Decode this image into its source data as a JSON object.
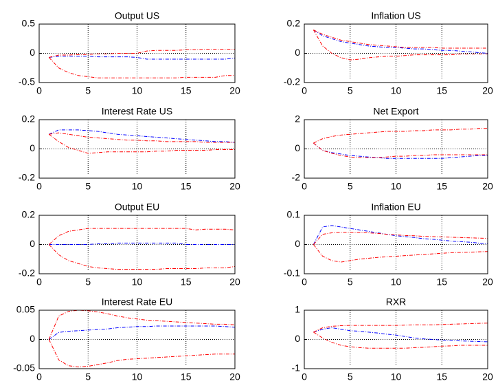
{
  "chart_data": [
    {
      "type": "line",
      "title": "Output US",
      "x": [
        1,
        2,
        3,
        4,
        5,
        6,
        7,
        8,
        9,
        10,
        11,
        12,
        13,
        14,
        15,
        16,
        17,
        18,
        19,
        20
      ],
      "xlim": [
        0,
        20
      ],
      "xticks": [
        0,
        5,
        10,
        15,
        20
      ],
      "ylim": [
        -0.5,
        0.5
      ],
      "yticks": [
        -0.5,
        0,
        0.5
      ],
      "grid": "x",
      "series": [
        {
          "color": "#0000ff",
          "values": [
            -0.07,
            -0.05,
            -0.05,
            -0.05,
            -0.05,
            -0.06,
            -0.06,
            -0.06,
            -0.06,
            -0.07,
            -0.1,
            -0.1,
            -0.1,
            -0.1,
            -0.1,
            -0.1,
            -0.1,
            -0.1,
            -0.1,
            -0.08
          ]
        },
        {
          "color": "#ff0000",
          "values": [
            -0.07,
            -0.03,
            -0.03,
            -0.02,
            -0.02,
            -0.01,
            -0.01,
            0,
            0,
            0,
            0.04,
            0.05,
            0.05,
            0.05,
            0.06,
            0.06,
            0.07,
            0.07,
            0.07,
            0.07
          ]
        },
        {
          "color": "#ff0000",
          "values": [
            -0.07,
            -0.25,
            -0.33,
            -0.38,
            -0.4,
            -0.42,
            -0.42,
            -0.42,
            -0.42,
            -0.42,
            -0.42,
            -0.42,
            -0.42,
            -0.42,
            -0.41,
            -0.41,
            -0.41,
            -0.41,
            -0.38,
            -0.38
          ]
        }
      ]
    },
    {
      "type": "line",
      "title": "Inflation US",
      "x": [
        1,
        2,
        3,
        4,
        5,
        6,
        7,
        8,
        9,
        10,
        11,
        12,
        13,
        14,
        15,
        16,
        17,
        18,
        19,
        20
      ],
      "xlim": [
        0,
        20
      ],
      "xticks": [
        0,
        5,
        10,
        15,
        20
      ],
      "ylim": [
        -0.2,
        0.2
      ],
      "yticks": [
        -0.2,
        0,
        0.2
      ],
      "grid": "x",
      "series": [
        {
          "color": "#0000ff",
          "values": [
            0.16,
            0.12,
            0.1,
            0.08,
            0.07,
            0.06,
            0.05,
            0.045,
            0.04,
            0.04,
            0.035,
            0.03,
            0.03,
            0.025,
            0.02,
            0.02,
            0.015,
            0.01,
            0.005,
            0
          ]
        },
        {
          "color": "#ff0000",
          "values": [
            0.16,
            0.13,
            0.11,
            0.09,
            0.08,
            0.07,
            0.06,
            0.055,
            0.05,
            0.045,
            0.04,
            0.04,
            0.04,
            0.04,
            0.035,
            0.035,
            0.035,
            0.035,
            0.035,
            0.035
          ]
        },
        {
          "color": "#ff0000",
          "values": [
            0.16,
            0.05,
            0,
            -0.03,
            -0.045,
            -0.04,
            -0.03,
            -0.025,
            -0.02,
            -0.02,
            -0.015,
            -0.01,
            -0.01,
            -0.01,
            -0.01,
            -0.01,
            -0.005,
            -0.005,
            -0.005,
            -0.005
          ]
        }
      ]
    },
    {
      "type": "line",
      "title": "Interest Rate US",
      "x": [
        1,
        2,
        3,
        4,
        5,
        6,
        7,
        8,
        9,
        10,
        11,
        12,
        13,
        14,
        15,
        16,
        17,
        18,
        19,
        20
      ],
      "xlim": [
        0,
        20
      ],
      "xticks": [
        0,
        5,
        10,
        15,
        20
      ],
      "ylim": [
        -0.2,
        0.2
      ],
      "yticks": [
        -0.2,
        0,
        0.2
      ],
      "grid": "x",
      "series": [
        {
          "color": "#0000ff",
          "values": [
            0.1,
            0.13,
            0.13,
            0.13,
            0.125,
            0.12,
            0.11,
            0.1,
            0.095,
            0.09,
            0.085,
            0.08,
            0.075,
            0.07,
            0.065,
            0.06,
            0.055,
            0.05,
            0.05,
            0.045
          ]
        },
        {
          "color": "#ff0000",
          "values": [
            0.1,
            0.11,
            0.1,
            0.09,
            0.08,
            0.075,
            0.07,
            0.065,
            0.06,
            0.06,
            0.055,
            0.055,
            0.05,
            0.05,
            0.05,
            0.05,
            0.045,
            0.045,
            0.045,
            0.045
          ]
        },
        {
          "color": "#ff0000",
          "values": [
            0.1,
            0.05,
            0.01,
            -0.01,
            -0.03,
            -0.025,
            -0.02,
            -0.02,
            -0.02,
            -0.02,
            -0.02,
            -0.015,
            -0.015,
            -0.01,
            -0.01,
            -0.01,
            -0.01,
            -0.005,
            -0.005,
            -0.005
          ]
        }
      ]
    },
    {
      "type": "line",
      "title": "Net Export",
      "x": [
        1,
        2,
        3,
        4,
        5,
        6,
        7,
        8,
        9,
        10,
        11,
        12,
        13,
        14,
        15,
        16,
        17,
        18,
        19,
        20
      ],
      "xlim": [
        0,
        20
      ],
      "xticks": [
        0,
        5,
        10,
        15,
        20
      ],
      "ylim": [
        -2,
        2
      ],
      "yticks": [
        -2,
        0,
        2
      ],
      "grid": "x",
      "series": [
        {
          "color": "#0000ff",
          "values": [
            0.4,
            -0.1,
            -0.25,
            -0.35,
            -0.45,
            -0.5,
            -0.55,
            -0.6,
            -0.65,
            -0.65,
            -0.65,
            -0.65,
            -0.65,
            -0.65,
            -0.65,
            -0.6,
            -0.55,
            -0.5,
            -0.45,
            -0.45
          ]
        },
        {
          "color": "#ff0000",
          "values": [
            0.4,
            0.7,
            0.85,
            0.95,
            1,
            1.05,
            1.1,
            1.15,
            1.2,
            1.2,
            1.2,
            1.25,
            1.25,
            1.3,
            1.3,
            1.3,
            1.35,
            1.35,
            1.4,
            1.4
          ]
        },
        {
          "color": "#ff0000",
          "values": [
            0.4,
            -0.1,
            -0.3,
            -0.45,
            -0.55,
            -0.6,
            -0.6,
            -0.6,
            -0.55,
            -0.5,
            -0.5,
            -0.45,
            -0.45,
            -0.4,
            -0.4,
            -0.4,
            -0.4,
            -0.4,
            -0.4,
            -0.4
          ]
        }
      ]
    },
    {
      "type": "line",
      "title": "Output EU",
      "x": [
        1,
        2,
        3,
        4,
        5,
        6,
        7,
        8,
        9,
        10,
        11,
        12,
        13,
        14,
        15,
        16,
        17,
        18,
        19,
        20
      ],
      "xlim": [
        0,
        20
      ],
      "xticks": [
        0,
        5,
        10,
        15,
        20
      ],
      "ylim": [
        -0.2,
        0.2
      ],
      "yticks": [
        -0.2,
        0,
        0.2
      ],
      "grid": "x",
      "series": [
        {
          "color": "#0000ff",
          "values": [
            0,
            0,
            0,
            0,
            0,
            0.005,
            0.005,
            0.01,
            0.01,
            0.01,
            0.01,
            0.01,
            0.01,
            0.01,
            0,
            0,
            0,
            0,
            0,
            0
          ]
        },
        {
          "color": "#ff0000",
          "values": [
            0,
            0.06,
            0.09,
            0.1,
            0.11,
            0.11,
            0.11,
            0.11,
            0.11,
            0.11,
            0.11,
            0.11,
            0.11,
            0.11,
            0.11,
            0.1,
            0.105,
            0.105,
            0.105,
            0.1
          ]
        },
        {
          "color": "#ff0000",
          "values": [
            0,
            -0.07,
            -0.11,
            -0.13,
            -0.15,
            -0.16,
            -0.165,
            -0.17,
            -0.17,
            -0.17,
            -0.17,
            -0.17,
            -0.165,
            -0.165,
            -0.165,
            -0.165,
            -0.16,
            -0.16,
            -0.16,
            -0.15
          ]
        }
      ]
    },
    {
      "type": "line",
      "title": "Inflation EU",
      "x": [
        1,
        2,
        3,
        4,
        5,
        6,
        7,
        8,
        9,
        10,
        11,
        12,
        13,
        14,
        15,
        16,
        17,
        18,
        19,
        20
      ],
      "xlim": [
        0,
        20
      ],
      "xticks": [
        0,
        5,
        10,
        15,
        20
      ],
      "ylim": [
        -0.1,
        0.1
      ],
      "yticks": [
        -0.1,
        0,
        0.1
      ],
      "grid": "x",
      "series": [
        {
          "color": "#0000ff",
          "values": [
            0,
            0.06,
            0.065,
            0.06,
            0.055,
            0.05,
            0.045,
            0.04,
            0.035,
            0.03,
            0.027,
            0.024,
            0.02,
            0.018,
            0.015,
            0.012,
            0.01,
            0.008,
            0.005,
            0.003
          ]
        },
        {
          "color": "#ff0000",
          "values": [
            0,
            0.035,
            0.04,
            0.042,
            0.042,
            0.041,
            0.04,
            0.038,
            0.035,
            0.033,
            0.031,
            0.03,
            0.028,
            0.027,
            0.026,
            0.025,
            0.024,
            0.023,
            0.022,
            0.021
          ]
        },
        {
          "color": "#ff0000",
          "values": [
            0,
            -0.04,
            -0.055,
            -0.06,
            -0.055,
            -0.05,
            -0.047,
            -0.044,
            -0.042,
            -0.04,
            -0.038,
            -0.036,
            -0.034,
            -0.032,
            -0.03,
            -0.028,
            -0.027,
            -0.026,
            -0.025,
            -0.024
          ]
        }
      ]
    },
    {
      "type": "line",
      "title": "Interest Rate EU",
      "x": [
        1,
        2,
        3,
        4,
        5,
        6,
        7,
        8,
        9,
        10,
        11,
        12,
        13,
        14,
        15,
        16,
        17,
        18,
        19,
        20
      ],
      "xlim": [
        0,
        20
      ],
      "xticks": [
        0,
        5,
        10,
        15,
        20
      ],
      "ylim": [
        -0.05,
        0.05
      ],
      "yticks": [
        -0.05,
        0,
        0.05
      ],
      "grid": "x",
      "series": [
        {
          "color": "#0000ff",
          "values": [
            0,
            0.012,
            0.014,
            0.015,
            0.016,
            0.017,
            0.018,
            0.02,
            0.021,
            0.022,
            0.022,
            0.023,
            0.023,
            0.023,
            0.023,
            0.023,
            0.023,
            0.023,
            0.022,
            0.021
          ]
        },
        {
          "color": "#ff0000",
          "values": [
            0,
            0.04,
            0.048,
            0.05,
            0.049,
            0.047,
            0.044,
            0.04,
            0.037,
            0.035,
            0.033,
            0.032,
            0.031,
            0.03,
            0.029,
            0.028,
            0.027,
            0.026,
            0.026,
            0.025
          ]
        },
        {
          "color": "#ff0000",
          "values": [
            0,
            -0.035,
            -0.045,
            -0.047,
            -0.046,
            -0.043,
            -0.04,
            -0.036,
            -0.034,
            -0.033,
            -0.032,
            -0.031,
            -0.03,
            -0.029,
            -0.028,
            -0.027,
            -0.026,
            -0.025,
            -0.025,
            -0.025
          ]
        }
      ]
    },
    {
      "type": "line",
      "title": "RXR",
      "x": [
        1,
        2,
        3,
        4,
        5,
        6,
        7,
        8,
        9,
        10,
        11,
        12,
        13,
        14,
        15,
        16,
        17,
        18,
        19,
        20
      ],
      "xlim": [
        0,
        20
      ],
      "xticks": [
        0,
        5,
        10,
        15,
        20
      ],
      "ylim": [
        -1,
        1
      ],
      "yticks": [
        -1,
        0,
        1
      ],
      "grid": "x",
      "series": [
        {
          "color": "#0000ff",
          "values": [
            0.25,
            0.35,
            0.4,
            0.35,
            0.3,
            0.28,
            0.25,
            0.22,
            0.18,
            0.15,
            0.1,
            0.05,
            0.02,
            0,
            -0.02,
            -0.03,
            -0.05,
            -0.06,
            -0.07,
            -0.08
          ]
        },
        {
          "color": "#ff0000",
          "values": [
            0.25,
            0.4,
            0.45,
            0.47,
            0.48,
            0.48,
            0.48,
            0.48,
            0.48,
            0.48,
            0.49,
            0.5,
            0.5,
            0.5,
            0.51,
            0.52,
            0.53,
            0.54,
            0.55,
            0.56
          ]
        },
        {
          "color": "#ff0000",
          "values": [
            0.25,
            0.05,
            -0.1,
            -0.2,
            -0.25,
            -0.28,
            -0.3,
            -0.3,
            -0.3,
            -0.3,
            -0.3,
            -0.28,
            -0.27,
            -0.25,
            -0.23,
            -0.22,
            -0.2,
            -0.2,
            -0.2,
            -0.2
          ]
        }
      ]
    }
  ]
}
